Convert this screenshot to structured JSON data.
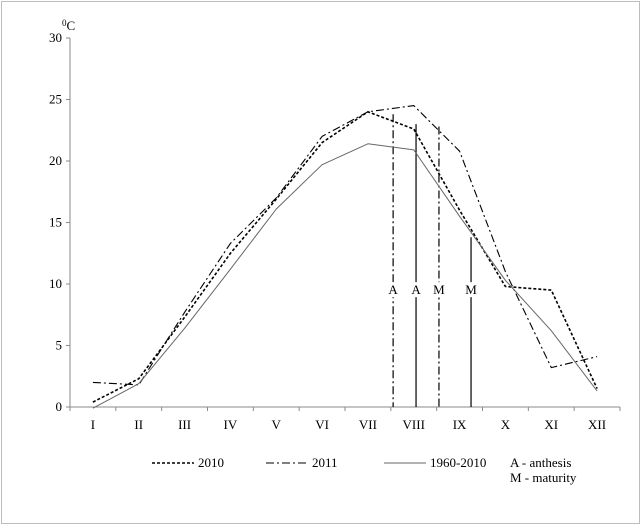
{
  "chart_data": {
    "type": "line",
    "unit_label": "0C",
    "categories": [
      "I",
      "II",
      "III",
      "IV",
      "V",
      "VI",
      "VII",
      "VIII",
      "IX",
      "X",
      "XI",
      "XII"
    ],
    "ylim": [
      0,
      30
    ],
    "yticks": [
      0,
      5,
      10,
      15,
      20,
      25,
      30
    ],
    "series": [
      {
        "name": "2010",
        "color": "#000000",
        "dash": "3,2",
        "width": 1.6,
        "values": [
          0.4,
          2.3,
          7.3,
          12.5,
          16.9,
          21.5,
          24.0,
          22.6,
          16.0,
          9.8,
          9.5,
          1.5
        ]
      },
      {
        "name": "2011",
        "color": "#000000",
        "dash": "8,3,2,3",
        "width": 1.1,
        "values": [
          2.0,
          1.8,
          7.7,
          13.3,
          17.0,
          22.0,
          24.0,
          24.5,
          20.8,
          11.0,
          3.2,
          4.1
        ]
      },
      {
        "name": "1960-2010",
        "color": "#666666",
        "dash": "",
        "width": 1.0,
        "values": [
          -0.1,
          1.9,
          6.4,
          11.2,
          16.1,
          19.7,
          21.4,
          20.9,
          15.5,
          10.3,
          6.2,
          1.3
        ]
      }
    ],
    "markers": [
      {
        "label": "A",
        "x": 6.55,
        "top": 23.8,
        "dash": "8,3,2,3"
      },
      {
        "label": "A",
        "x": 7.05,
        "top": 23.0,
        "dash": ""
      },
      {
        "label": "M",
        "x": 7.55,
        "top": 22.8,
        "dash": "8,3,2,3"
      },
      {
        "label": "M",
        "x": 8.25,
        "top": 13.8,
        "dash": ""
      }
    ],
    "marker_label_value": 9.5,
    "legend_notes": [
      "A - anthesis",
      "M - maturity"
    ],
    "grid": false,
    "legend_position": "bottom"
  }
}
